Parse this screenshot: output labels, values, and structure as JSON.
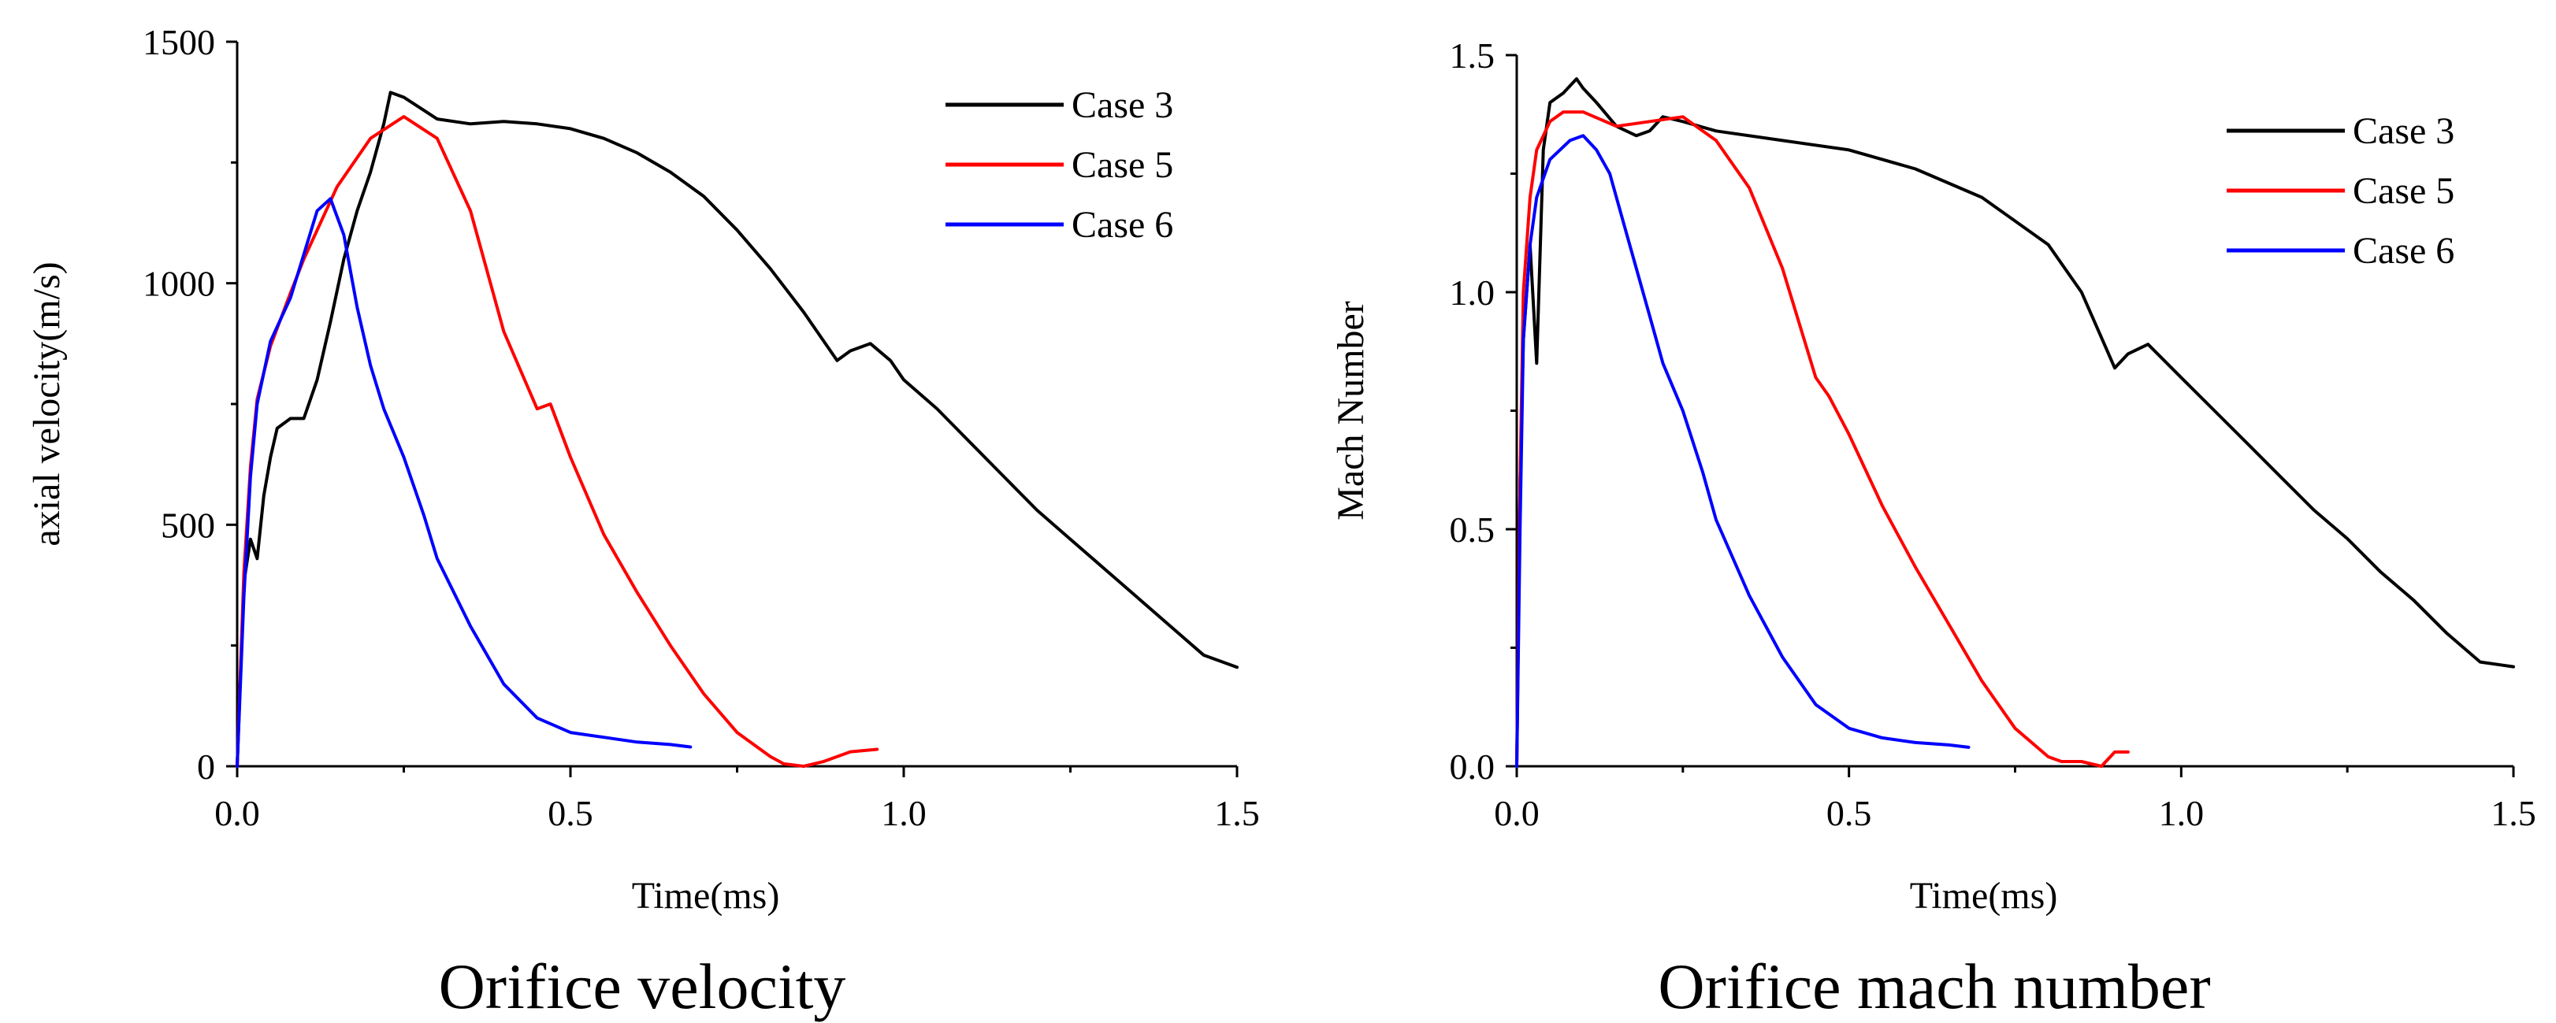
{
  "chart_data": [
    {
      "type": "line",
      "title": "",
      "caption": "Orifice velocity",
      "xlabel": "Time(ms)",
      "ylabel": "axial velocity(m/s)",
      "xlim": [
        0,
        1.5
      ],
      "ylim": [
        0,
        1500
      ],
      "xticks": [
        0.0,
        0.5,
        1.0,
        1.5
      ],
      "xtick_labels": [
        "0.0",
        "0.5",
        "1.0",
        "1.5"
      ],
      "yticks": [
        0,
        500,
        1000,
        1500
      ],
      "ytick_labels": [
        "0",
        "500",
        "1000",
        "1500"
      ],
      "legend_position": "top-right",
      "series": [
        {
          "name": "Case 3",
          "color": "#000000",
          "x": [
            0,
            0.01,
            0.02,
            0.03,
            0.04,
            0.05,
            0.06,
            0.08,
            0.1,
            0.12,
            0.14,
            0.16,
            0.18,
            0.2,
            0.22,
            0.23,
            0.25,
            0.3,
            0.35,
            0.4,
            0.45,
            0.5,
            0.55,
            0.6,
            0.65,
            0.7,
            0.75,
            0.8,
            0.85,
            0.9,
            0.92,
            0.95,
            0.98,
            1.0,
            1.05,
            1.1,
            1.15,
            1.2,
            1.25,
            1.3,
            1.35,
            1.4,
            1.45,
            1.5
          ],
          "y": [
            0,
            380,
            470,
            430,
            560,
            640,
            700,
            720,
            720,
            800,
            920,
            1050,
            1150,
            1230,
            1330,
            1395,
            1385,
            1340,
            1330,
            1335,
            1330,
            1320,
            1300,
            1270,
            1230,
            1180,
            1110,
            1030,
            940,
            840,
            860,
            875,
            840,
            800,
            740,
            670,
            600,
            530,
            470,
            410,
            350,
            290,
            230,
            205
          ]
        },
        {
          "name": "Case 5",
          "color": "#ff0000",
          "x": [
            0,
            0.01,
            0.02,
            0.03,
            0.05,
            0.08,
            0.1,
            0.15,
            0.2,
            0.25,
            0.3,
            0.35,
            0.4,
            0.45,
            0.47,
            0.5,
            0.55,
            0.6,
            0.65,
            0.7,
            0.75,
            0.8,
            0.82,
            0.85,
            0.88,
            0.92,
            0.96
          ],
          "y": [
            0,
            400,
            620,
            760,
            870,
            980,
            1050,
            1200,
            1300,
            1345,
            1300,
            1150,
            900,
            740,
            750,
            640,
            480,
            360,
            250,
            150,
            70,
            20,
            5,
            0,
            10,
            30,
            35
          ]
        },
        {
          "name": "Case 6",
          "color": "#0000ff",
          "x": [
            0,
            0.01,
            0.02,
            0.03,
            0.05,
            0.08,
            0.1,
            0.12,
            0.14,
            0.16,
            0.18,
            0.2,
            0.22,
            0.25,
            0.28,
            0.3,
            0.35,
            0.4,
            0.45,
            0.5,
            0.55,
            0.6,
            0.65,
            0.68
          ],
          "y": [
            0,
            350,
            600,
            750,
            880,
            970,
            1060,
            1150,
            1175,
            1100,
            950,
            830,
            740,
            640,
            520,
            430,
            290,
            170,
            100,
            70,
            60,
            50,
            45,
            40
          ]
        }
      ]
    },
    {
      "type": "line",
      "title": "",
      "caption": "Orifice mach number",
      "xlabel": "Time(ms)",
      "ylabel": "Mach Number",
      "xlim": [
        0,
        1.5
      ],
      "ylim": [
        0,
        1.5
      ],
      "xticks": [
        0.0,
        0.5,
        1.0,
        1.5
      ],
      "xtick_labels": [
        "0.0",
        "0.5",
        "1.0",
        "1.5"
      ],
      "yticks": [
        0.0,
        0.5,
        1.0,
        1.5
      ],
      "ytick_labels": [
        "0.0",
        "0.5",
        "1.0",
        "1.5"
      ],
      "legend_position": "top-right",
      "series": [
        {
          "name": "Case 3",
          "color": "#000000",
          "x": [
            0,
            0.005,
            0.01,
            0.02,
            0.03,
            0.04,
            0.05,
            0.07,
            0.09,
            0.1,
            0.12,
            0.15,
            0.18,
            0.2,
            0.22,
            0.25,
            0.3,
            0.4,
            0.5,
            0.6,
            0.7,
            0.8,
            0.85,
            0.9,
            0.92,
            0.95,
            1.0,
            1.05,
            1.1,
            1.15,
            1.2,
            1.25,
            1.3,
            1.35,
            1.4,
            1.45,
            1.5
          ],
          "y": [
            0,
            0.6,
            0.9,
            1.1,
            0.85,
            1.3,
            1.4,
            1.42,
            1.45,
            1.43,
            1.4,
            1.35,
            1.33,
            1.34,
            1.37,
            1.36,
            1.34,
            1.32,
            1.3,
            1.26,
            1.2,
            1.1,
            1.0,
            0.84,
            0.87,
            0.89,
            0.82,
            0.75,
            0.68,
            0.61,
            0.54,
            0.48,
            0.41,
            0.35,
            0.28,
            0.22,
            0.21
          ]
        },
        {
          "name": "Case 5",
          "color": "#ff0000",
          "x": [
            0,
            0.005,
            0.01,
            0.02,
            0.03,
            0.05,
            0.07,
            0.1,
            0.15,
            0.2,
            0.25,
            0.3,
            0.35,
            0.4,
            0.45,
            0.47,
            0.5,
            0.55,
            0.6,
            0.65,
            0.7,
            0.75,
            0.8,
            0.82,
            0.85,
            0.88,
            0.9,
            0.92
          ],
          "y": [
            0,
            0.6,
            1.0,
            1.2,
            1.3,
            1.36,
            1.38,
            1.38,
            1.35,
            1.36,
            1.37,
            1.32,
            1.22,
            1.05,
            0.82,
            0.78,
            0.7,
            0.55,
            0.42,
            0.3,
            0.18,
            0.08,
            0.02,
            0.01,
            0.01,
            0.0,
            0.03,
            0.03
          ]
        },
        {
          "name": "Case 6",
          "color": "#0000ff",
          "x": [
            0,
            0.005,
            0.01,
            0.02,
            0.03,
            0.05,
            0.08,
            0.1,
            0.12,
            0.14,
            0.16,
            0.18,
            0.2,
            0.22,
            0.25,
            0.28,
            0.3,
            0.35,
            0.4,
            0.45,
            0.5,
            0.55,
            0.6,
            0.65,
            0.68
          ],
          "y": [
            0,
            0.5,
            0.9,
            1.1,
            1.2,
            1.28,
            1.32,
            1.33,
            1.3,
            1.25,
            1.15,
            1.05,
            0.95,
            0.85,
            0.75,
            0.62,
            0.52,
            0.36,
            0.23,
            0.13,
            0.08,
            0.06,
            0.05,
            0.045,
            0.04
          ]
        }
      ]
    }
  ]
}
